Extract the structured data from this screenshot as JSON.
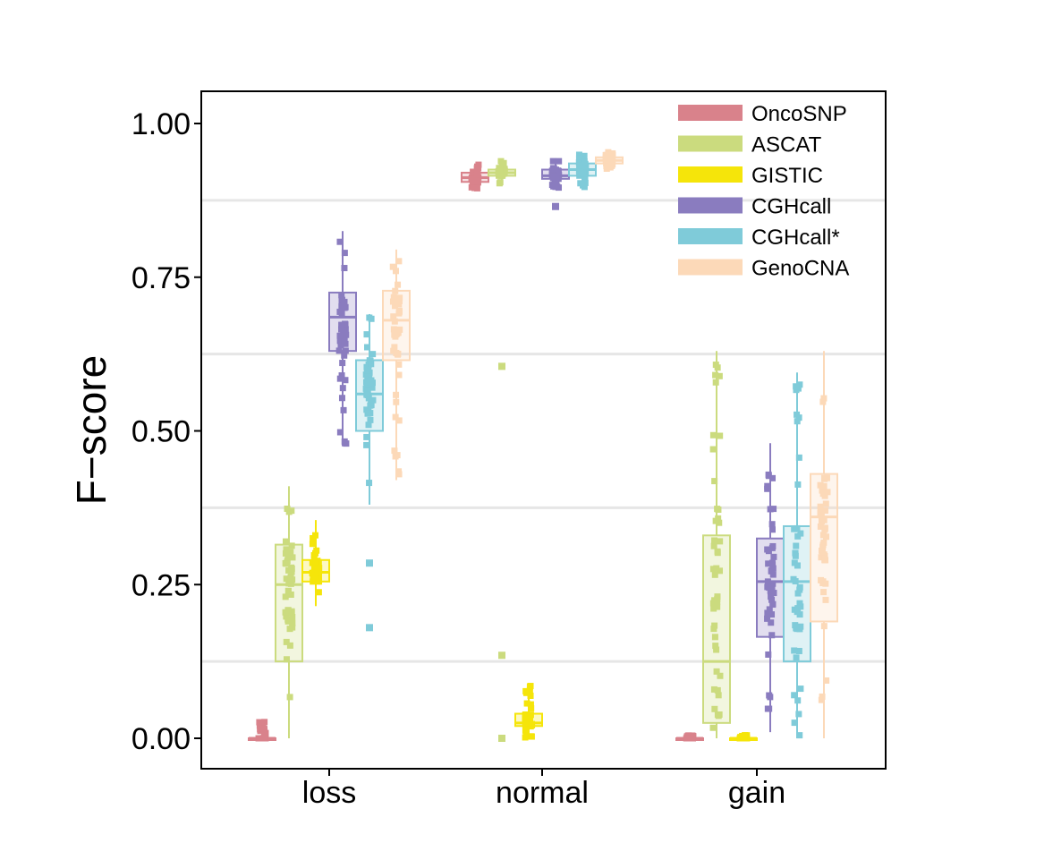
{
  "chart_data": {
    "type": "box",
    "ylabel": "F−score",
    "xlabel": "",
    "ylim": [
      -0.05,
      1.05
    ],
    "yticks": [
      "0.00",
      "0.25",
      "0.50",
      "0.75",
      "1.00"
    ],
    "grid": "horizontal minor lines",
    "legend_position": "top-right",
    "categories": [
      "loss",
      "normal",
      "gain"
    ],
    "series": [
      {
        "name": "OncoSNP",
        "color": "#d9828b",
        "boxes": [
          {
            "q1": 0.0,
            "median": 0.0,
            "q3": 0.0,
            "whisker_low": 0.0,
            "whisker_high": 0.02,
            "points_low": 0.0,
            "points_high": 0.03,
            "outliers": []
          },
          {
            "q1": 0.905,
            "median": 0.912,
            "q3": 0.92,
            "whisker_low": 0.89,
            "whisker_high": 0.935,
            "points_low": 0.89,
            "points_high": 0.935,
            "outliers": []
          },
          {
            "q1": 0.0,
            "median": 0.0,
            "q3": 0.0,
            "whisker_low": 0.0,
            "whisker_high": 0.0,
            "points_low": 0.0,
            "points_high": 0.005,
            "outliers": []
          }
        ]
      },
      {
        "name": "ASCAT",
        "color": "#cbdb7e",
        "boxes": [
          {
            "q1": 0.125,
            "median": 0.25,
            "q3": 0.315,
            "whisker_low": 0.0,
            "whisker_high": 0.41,
            "points_low": 0.0,
            "points_high": 0.41,
            "outliers": []
          },
          {
            "q1": 0.915,
            "median": 0.92,
            "q3": 0.925,
            "whisker_low": 0.9,
            "whisker_high": 0.935,
            "points_low": 0.9,
            "points_high": 0.94,
            "outliers": [
              0.605,
              0.135,
              0.0
            ]
          },
          {
            "q1": 0.025,
            "median": 0.125,
            "q3": 0.33,
            "whisker_low": 0.0,
            "whisker_high": 0.63,
            "points_low": 0.0,
            "points_high": 0.63,
            "outliers": []
          }
        ]
      },
      {
        "name": "GISTIC",
        "color": "#f5e50a",
        "boxes": [
          {
            "q1": 0.255,
            "median": 0.27,
            "q3": 0.29,
            "whisker_low": 0.215,
            "whisker_high": 0.355,
            "points_low": 0.215,
            "points_high": 0.355,
            "outliers": []
          },
          {
            "q1": 0.02,
            "median": 0.025,
            "q3": 0.04,
            "whisker_low": 0.0,
            "whisker_high": 0.085,
            "points_low": 0.0,
            "points_high": 0.09,
            "outliers": []
          },
          {
            "q1": 0.0,
            "median": 0.0,
            "q3": 0.0,
            "whisker_low": 0.0,
            "whisker_high": 0.0,
            "points_low": 0.0,
            "points_high": 0.005,
            "outliers": []
          }
        ]
      },
      {
        "name": "CGHcall",
        "color": "#8a7cbf",
        "boxes": [
          {
            "q1": 0.63,
            "median": 0.685,
            "q3": 0.725,
            "whisker_low": 0.475,
            "whisker_high": 0.825,
            "points_low": 0.475,
            "points_high": 0.825,
            "outliers": []
          },
          {
            "q1": 0.91,
            "median": 0.915,
            "q3": 0.925,
            "whisker_low": 0.895,
            "whisker_high": 0.94,
            "points_low": 0.895,
            "points_high": 0.94,
            "outliers": [
              0.865
            ]
          },
          {
            "q1": 0.165,
            "median": 0.255,
            "q3": 0.325,
            "whisker_low": 0.01,
            "whisker_high": 0.48,
            "points_low": 0.01,
            "points_high": 0.48,
            "outliers": []
          }
        ]
      },
      {
        "name": "CGHcall*",
        "color": "#7fcbd9",
        "boxes": [
          {
            "q1": 0.5,
            "median": 0.56,
            "q3": 0.615,
            "whisker_low": 0.38,
            "whisker_high": 0.69,
            "points_low": 0.38,
            "points_high": 0.69,
            "outliers": [
              0.285,
              0.18
            ]
          },
          {
            "q1": 0.915,
            "median": 0.925,
            "q3": 0.935,
            "whisker_low": 0.895,
            "whisker_high": 0.95,
            "points_low": 0.895,
            "points_high": 0.95,
            "outliers": []
          },
          {
            "q1": 0.125,
            "median": 0.255,
            "q3": 0.345,
            "whisker_low": 0.0,
            "whisker_high": 0.595,
            "points_low": 0.0,
            "points_high": 0.595,
            "outliers": []
          }
        ]
      },
      {
        "name": "GenoCNA",
        "color": "#fcd9b8",
        "boxes": [
          {
            "q1": 0.615,
            "median": 0.68,
            "q3": 0.728,
            "whisker_low": 0.42,
            "whisker_high": 0.795,
            "points_low": 0.42,
            "points_high": 0.795,
            "outliers": []
          },
          {
            "q1": 0.935,
            "median": 0.94,
            "q3": 0.945,
            "whisker_low": 0.925,
            "whisker_high": 0.955,
            "points_low": 0.925,
            "points_high": 0.955,
            "outliers": []
          },
          {
            "q1": 0.19,
            "median": 0.36,
            "q3": 0.43,
            "whisker_low": 0.0,
            "whisker_high": 0.63,
            "points_low": 0.0,
            "points_high": 0.63,
            "outliers": []
          }
        ]
      }
    ]
  }
}
